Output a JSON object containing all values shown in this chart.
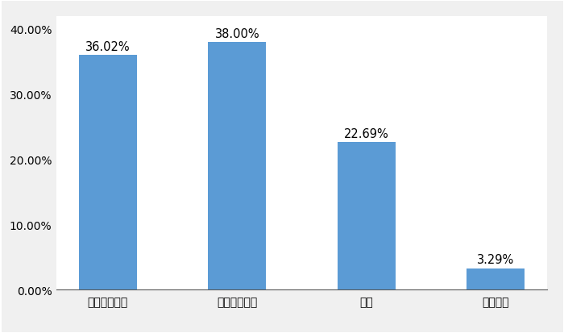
{
  "categories": [
    "有房、無房貸",
    "有房、有房貸",
    "租房",
    "單位宿舍"
  ],
  "values": [
    0.3602,
    0.38,
    0.2269,
    0.0329
  ],
  "labels": [
    "36.02%",
    "38.00%",
    "22.69%",
    "3.29%"
  ],
  "bar_color": "#5B9BD5",
  "ylim": [
    0,
    0.42
  ],
  "yticks": [
    0.0,
    0.1,
    0.2,
    0.3,
    0.4
  ],
  "ytick_labels": [
    "0.00%",
    "10.00%",
    "20.00%",
    "30.00%",
    "40.00%"
  ],
  "plot_bg_color": "#ffffff",
  "fig_bg_color": "#f0f0f0",
  "bar_width": 0.45,
  "label_fontsize": 10.5,
  "tick_fontsize": 10.5
}
